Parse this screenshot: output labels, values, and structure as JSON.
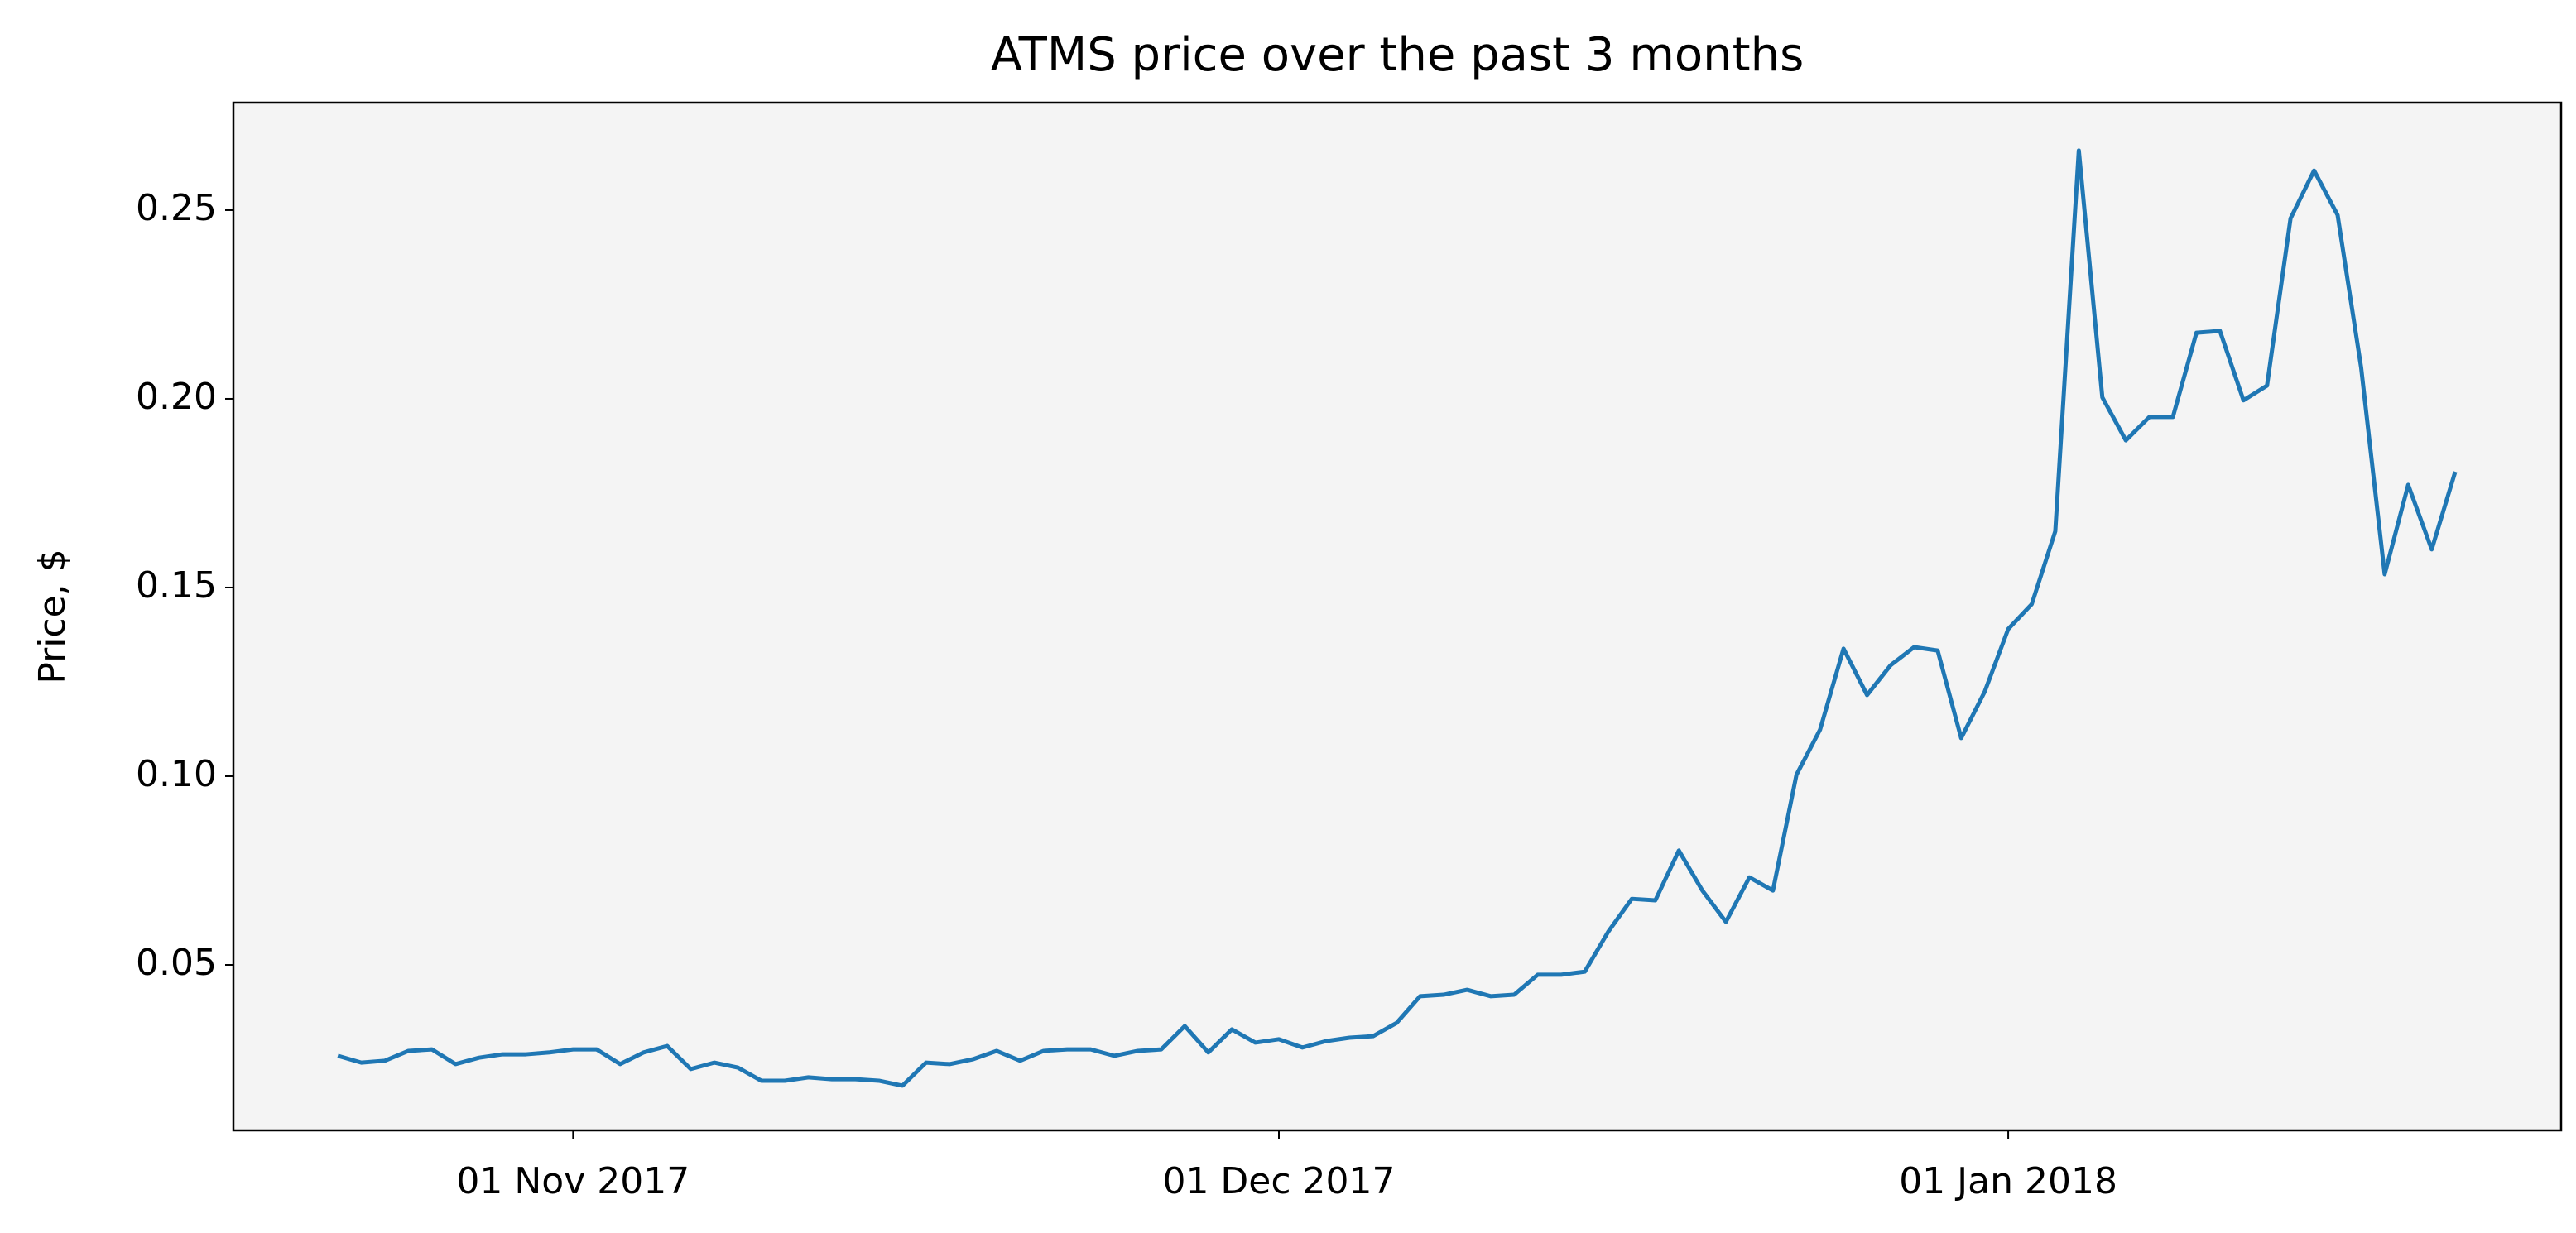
{
  "chart_data": {
    "type": "line",
    "title": "ATMS price over the past 3 months",
    "y_label": "Price, $",
    "x": [
      "2017-10-22",
      "2017-10-23",
      "2017-10-24",
      "2017-10-25",
      "2017-10-26",
      "2017-10-27",
      "2017-10-28",
      "2017-10-29",
      "2017-10-30",
      "2017-10-31",
      "2017-11-01",
      "2017-11-02",
      "2017-11-03",
      "2017-11-04",
      "2017-11-05",
      "2017-11-06",
      "2017-11-07",
      "2017-11-08",
      "2017-11-09",
      "2017-11-10",
      "2017-11-11",
      "2017-11-12",
      "2017-11-13",
      "2017-11-14",
      "2017-11-15",
      "2017-11-16",
      "2017-11-17",
      "2017-11-18",
      "2017-11-19",
      "2017-11-20",
      "2017-11-21",
      "2017-11-22",
      "2017-11-23",
      "2017-11-24",
      "2017-11-25",
      "2017-11-26",
      "2017-11-27",
      "2017-11-28",
      "2017-11-29",
      "2017-11-30",
      "2017-12-01",
      "2017-12-02",
      "2017-12-03",
      "2017-12-04",
      "2017-12-05",
      "2017-12-06",
      "2017-12-07",
      "2017-12-08",
      "2017-12-09",
      "2017-12-10",
      "2017-12-11",
      "2017-12-12",
      "2017-12-13",
      "2017-12-14",
      "2017-12-15",
      "2017-12-16",
      "2017-12-17",
      "2017-12-18",
      "2017-12-19",
      "2017-12-20",
      "2017-12-21",
      "2017-12-22",
      "2017-12-23",
      "2017-12-24",
      "2017-12-25",
      "2017-12-26",
      "2017-12-27",
      "2017-12-28",
      "2017-12-29",
      "2017-12-30",
      "2017-12-31",
      "2018-01-01",
      "2018-01-02",
      "2018-01-03",
      "2018-01-04",
      "2018-01-05",
      "2018-01-06",
      "2018-01-07",
      "2018-01-08",
      "2018-01-09",
      "2018-01-10",
      "2018-01-11",
      "2018-01-12",
      "2018-01-13",
      "2018-01-14",
      "2018-01-15",
      "2018-01-16",
      "2018-01-17",
      "2018-01-18",
      "2018-01-19",
      "2018-01-20"
    ],
    "series": [
      {
        "name": "ATMS",
        "color": "#1f77b4",
        "values": [
          0.0259,
          0.0241,
          0.0246,
          0.0272,
          0.0276,
          0.0237,
          0.0254,
          0.0263,
          0.0263,
          0.0268,
          0.0276,
          0.0276,
          0.0237,
          0.0268,
          0.0285,
          0.0224,
          0.0241,
          0.0228,
          0.0193,
          0.0193,
          0.0202,
          0.0197,
          0.0197,
          0.0193,
          0.018,
          0.0241,
          0.0237,
          0.025,
          0.0272,
          0.0246,
          0.0272,
          0.0276,
          0.0276,
          0.0259,
          0.0272,
          0.0276,
          0.0338,
          0.0268,
          0.0329,
          0.0294,
          0.0303,
          0.0281,
          0.0298,
          0.0307,
          0.0311,
          0.0346,
          0.0417,
          0.0421,
          0.0434,
          0.0417,
          0.0421,
          0.0474,
          0.0474,
          0.0482,
          0.0588,
          0.0675,
          0.0671,
          0.0803,
          0.0697,
          0.0614,
          0.0732,
          0.0697,
          0.1004,
          0.1123,
          0.1338,
          0.1215,
          0.1294,
          0.1342,
          0.1333,
          0.1101,
          0.1224,
          0.139,
          0.1456,
          0.1649,
          0.2658,
          0.2004,
          0.189,
          0.1952,
          0.1952,
          0.2175,
          0.218,
          0.1996,
          0.2035,
          0.2478,
          0.2605,
          0.2487,
          0.2083,
          0.1535,
          0.1772,
          0.1601,
          0.1807
        ]
      }
    ],
    "xlim": [
      "2017-10-17T13:30:00",
      "2018-01-24T12:00:00"
    ],
    "xticks": [
      {
        "value": "2017-11-01",
        "label": "01 Nov 2017"
      },
      {
        "value": "2017-12-01",
        "label": "01 Dec 2017"
      },
      {
        "value": "2018-01-01",
        "label": "01 Jan 2018"
      }
    ],
    "ylim": [
      0.00614,
      0.2785
    ],
    "yticks": [
      {
        "value": 0.05,
        "label": "0.05"
      },
      {
        "value": 0.1,
        "label": "0.10"
      },
      {
        "value": 0.15,
        "label": "0.15"
      },
      {
        "value": 0.2,
        "label": "0.20"
      },
      {
        "value": 0.25,
        "label": "0.25"
      }
    ],
    "grid": false,
    "background": "#f4f4f4"
  }
}
